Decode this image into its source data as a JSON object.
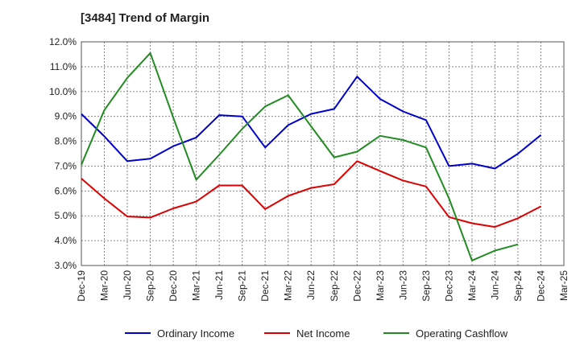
{
  "chart_data": {
    "type": "line",
    "title": "[3484]  Trend of Margin",
    "xlabel": "",
    "ylabel": "",
    "ylim": [
      3.0,
      12.0
    ],
    "y_ticks": [
      "3.0%",
      "4.0%",
      "5.0%",
      "6.0%",
      "7.0%",
      "8.0%",
      "9.0%",
      "10.0%",
      "11.0%",
      "12.0%"
    ],
    "categories": [
      "Dec-19",
      "Mar-20",
      "Jun-20",
      "Sep-20",
      "Dec-20",
      "Mar-21",
      "Jun-21",
      "Sep-21",
      "Dec-21",
      "Mar-22",
      "Jun-22",
      "Sep-22",
      "Dec-22",
      "Mar-23",
      "Jun-23",
      "Sep-23",
      "Dec-23",
      "Mar-24",
      "Jun-24",
      "Sep-24",
      "Dec-24",
      "Mar-25"
    ],
    "grid": true,
    "legend_position": "bottom",
    "series": [
      {
        "name": "Ordinary Income",
        "color": "#0000cc",
        "values": [
          9.1,
          8.2,
          7.2,
          7.3,
          7.8,
          8.15,
          9.05,
          9.0,
          7.75,
          8.65,
          9.1,
          9.3,
          10.6,
          9.7,
          9.2,
          8.85,
          7.0,
          7.1,
          6.9,
          7.5,
          8.25,
          null
        ]
      },
      {
        "name": "Net Income",
        "color": "#dd0000",
        "values": [
          6.5,
          5.7,
          4.97,
          4.93,
          5.3,
          5.57,
          6.22,
          6.22,
          5.27,
          5.8,
          6.12,
          6.27,
          7.2,
          6.8,
          6.42,
          6.18,
          4.95,
          4.7,
          4.55,
          4.9,
          5.38,
          null
        ]
      },
      {
        "name": "Operating Cashflow",
        "color": "#228b22",
        "values": [
          7.05,
          9.25,
          10.55,
          11.55,
          8.95,
          6.45,
          7.45,
          8.5,
          9.4,
          9.85,
          8.6,
          7.35,
          7.58,
          8.22,
          8.05,
          7.75,
          5.7,
          3.2,
          3.6,
          3.85,
          null,
          null
        ]
      }
    ]
  }
}
